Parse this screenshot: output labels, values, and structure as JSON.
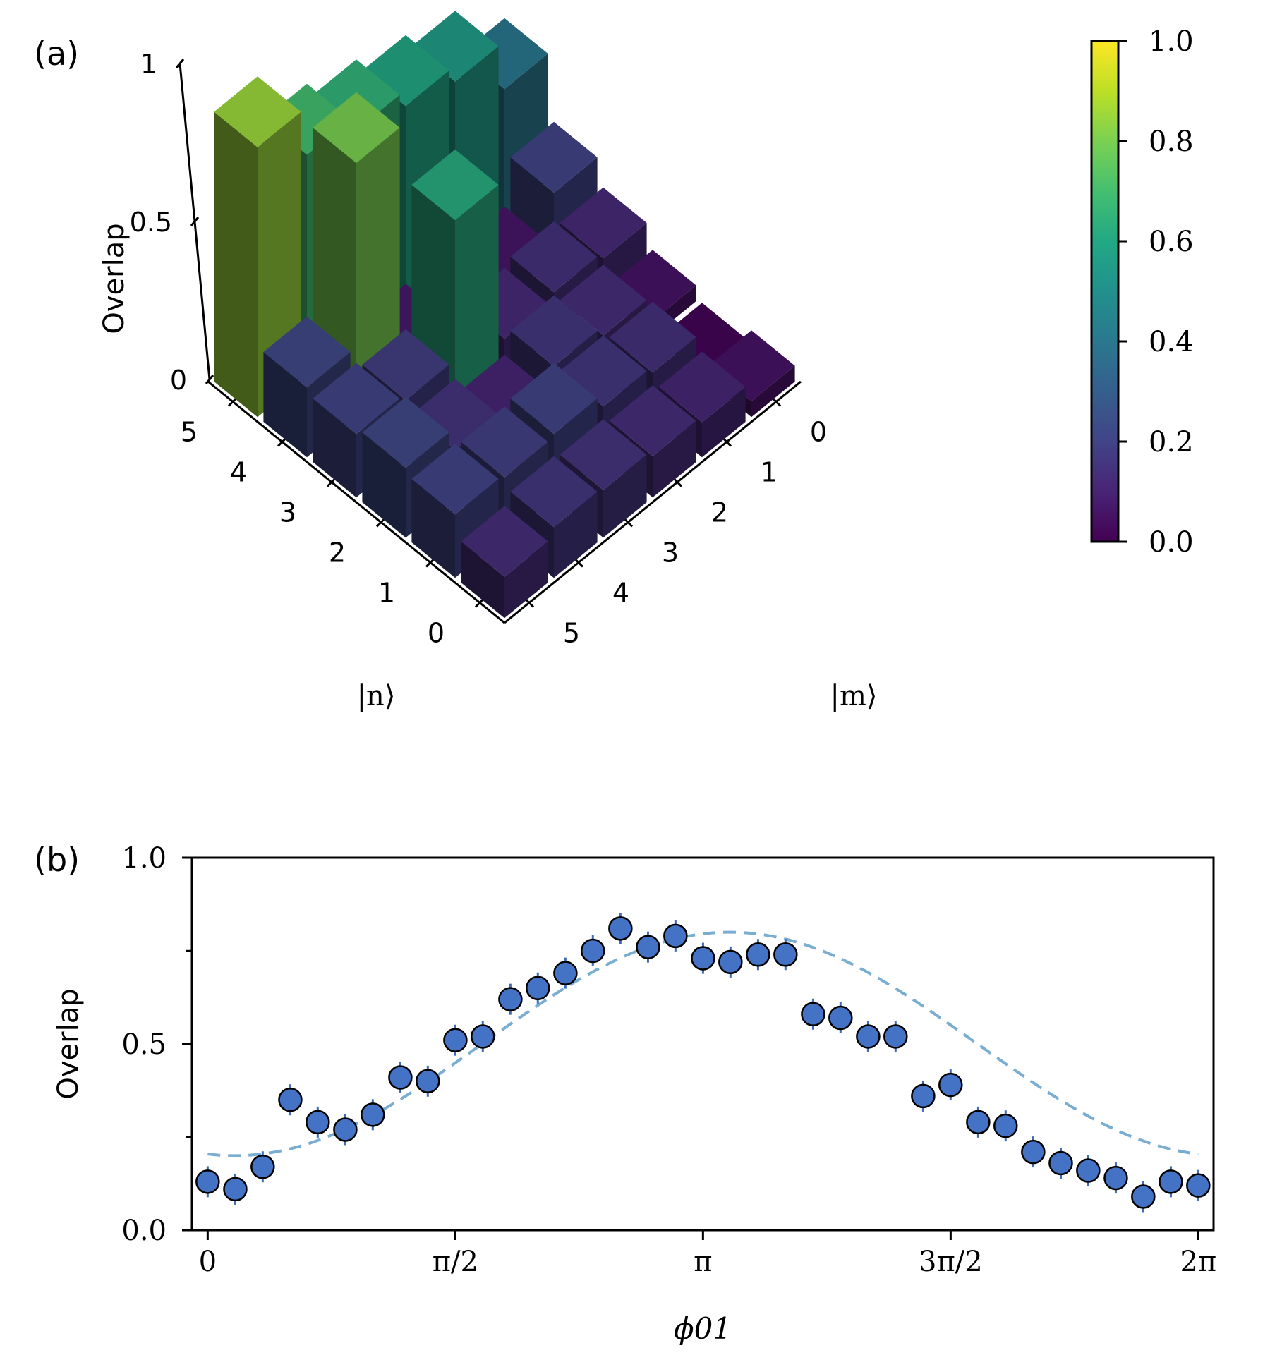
{
  "panels": {
    "a": "(a)",
    "b": "(b)"
  },
  "chart_data": [
    {
      "type": "bar3d",
      "panel": "(a)",
      "zlabel": "Overlap",
      "xlabel": "|m⟩",
      "ylabel": "|n⟩",
      "zlim": [
        0,
        1
      ],
      "z_ticks": [
        "0",
        "0.5",
        "1"
      ],
      "m_ticks": [
        "0",
        "1",
        "2",
        "3",
        "4",
        "5"
      ],
      "n_ticks": [
        "0",
        "1",
        "2",
        "3",
        "4",
        "5"
      ],
      "colormap": "viridis",
      "colorbar_ticks": [
        "0.0",
        "0.2",
        "0.4",
        "0.6",
        "0.8",
        "1.0"
      ],
      "matrix_note": "rows = n (0..5), columns = m (0..5)",
      "values": [
        [
          0.05,
          0.11,
          0.13,
          0.15,
          0.16,
          0.13
        ],
        [
          0.01,
          0.14,
          0.16,
          0.2,
          0.19,
          0.2
        ],
        [
          0.05,
          0.13,
          0.16,
          0.1,
          0.15,
          0.22
        ],
        [
          0.12,
          0.14,
          0.12,
          0.62,
          0.18,
          0.2
        ],
        [
          0.2,
          0.06,
          0.05,
          0.07,
          0.8,
          0.22
        ],
        [
          0.4,
          0.55,
          0.6,
          0.65,
          0.7,
          0.85
        ]
      ]
    },
    {
      "type": "scatter",
      "panel": "(b)",
      "xlabel": "ϕ01",
      "ylabel": "Overlap",
      "ylim": [
        0.0,
        1.0
      ],
      "xlim_rad": [
        -0.1,
        6.38
      ],
      "y_ticks": [
        "0.0",
        "0.5",
        "1.0"
      ],
      "x_ticks": [
        "0",
        "π/2",
        "π",
        "3π/2",
        "2π"
      ],
      "x": [
        0.0,
        0.175,
        0.349,
        0.524,
        0.698,
        0.873,
        1.047,
        1.222,
        1.396,
        1.571,
        1.745,
        1.92,
        2.094,
        2.269,
        2.443,
        2.618,
        2.793,
        2.967,
        3.142,
        3.316,
        3.491,
        3.665,
        3.84,
        4.014,
        4.189,
        4.363,
        4.538,
        4.712,
        4.887,
        5.061,
        5.236,
        5.411,
        5.585,
        5.76,
        5.934,
        6.109,
        6.283
      ],
      "y": [
        0.13,
        0.11,
        0.17,
        0.35,
        0.29,
        0.27,
        0.31,
        0.41,
        0.4,
        0.51,
        0.52,
        0.62,
        0.65,
        0.69,
        0.75,
        0.81,
        0.76,
        0.79,
        0.73,
        0.72,
        0.74,
        0.74,
        0.58,
        0.57,
        0.52,
        0.52,
        0.36,
        0.39,
        0.29,
        0.28,
        0.21,
        0.18,
        0.16,
        0.14,
        0.09,
        0.13,
        0.12
      ],
      "fit": {
        "style": "dashed",
        "color": "#7aadd2",
        "model": "0.5 - 0.3*cos(phi - 0.17)"
      },
      "marker_color": "#4472c4"
    }
  ]
}
